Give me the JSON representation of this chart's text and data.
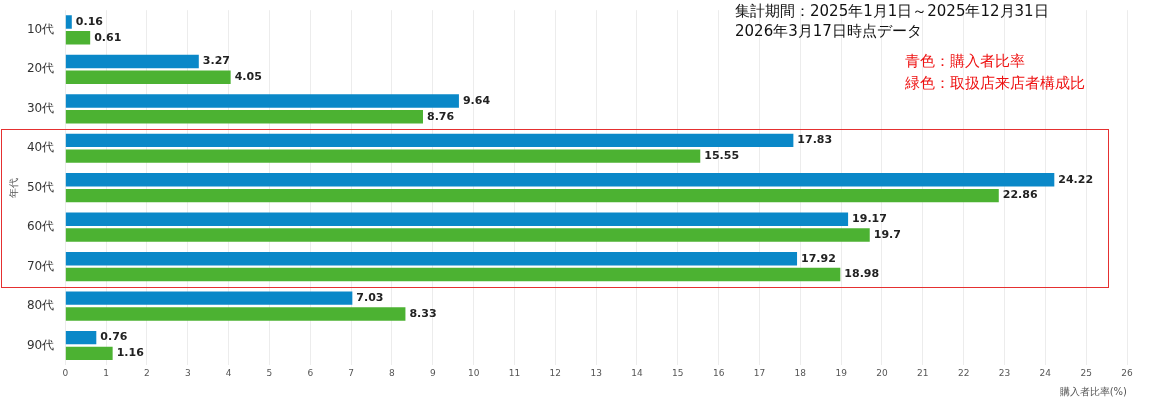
{
  "chart_data": {
    "type": "bar",
    "orientation": "horizontal",
    "categories": [
      "10代",
      "20代",
      "30代",
      "40代",
      "50代",
      "60代",
      "70代",
      "80代",
      "90代"
    ],
    "series": [
      {
        "color": "#0a88c8",
        "values": [
          0.16,
          3.27,
          9.64,
          17.83,
          24.22,
          19.17,
          17.92,
          7.03,
          0.76
        ]
      },
      {
        "color": "#4cb232",
        "values": [
          0.61,
          4.05,
          8.76,
          15.55,
          22.86,
          19.7,
          18.98,
          8.33,
          1.16
        ]
      }
    ],
    "xlim": [
      0,
      26
    ],
    "xticks": [
      0,
      1,
      2,
      3,
      4,
      5,
      6,
      7,
      8,
      9,
      10,
      11,
      12,
      13,
      14,
      15,
      16,
      17,
      18,
      19,
      20,
      21,
      22,
      23,
      24,
      25,
      26
    ],
    "xlabel": "購入者比率(%)",
    "ylabel": "年代",
    "grid": "x",
    "data_labels": true,
    "legend": false,
    "annotations": [
      "集計期間：2025年1月1日～2025年12月31日",
      "2026年3月17日時点データ",
      "青色：購入者比率",
      "緑色：取扱店来店者構成比"
    ]
  }
}
